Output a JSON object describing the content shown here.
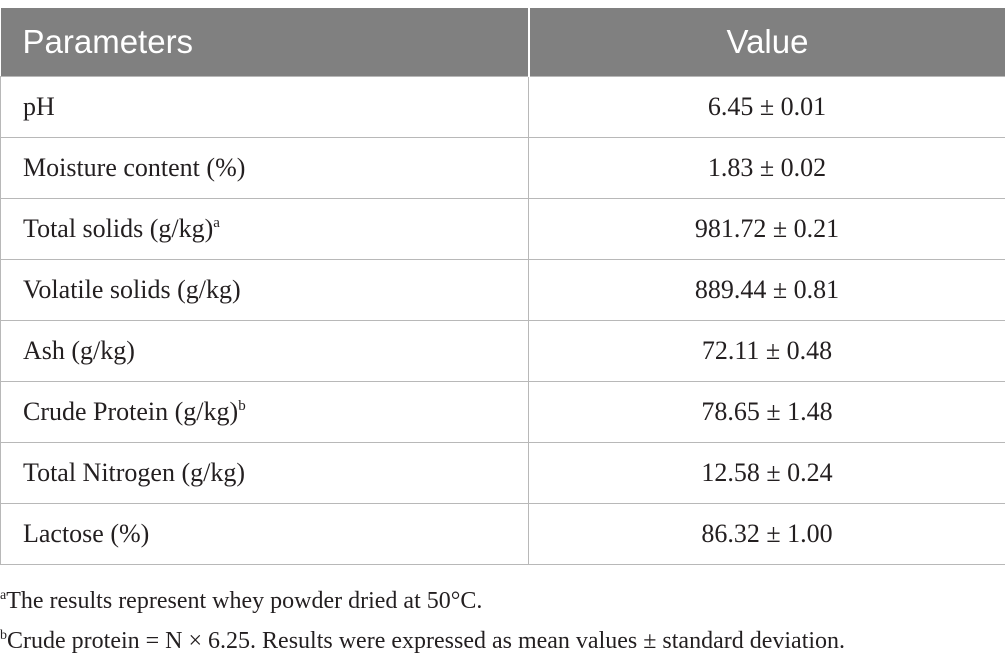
{
  "table": {
    "headers": [
      "Parameters",
      "Value"
    ],
    "rows": [
      {
        "parameter": "pH",
        "sup": "",
        "value": "6.45 ± 0.01"
      },
      {
        "parameter": "Moisture content (%)",
        "sup": "",
        "value": "1.83 ± 0.02"
      },
      {
        "parameter": "Total solids (g/kg)",
        "sup": "a",
        "value": "981.72 ± 0.21"
      },
      {
        "parameter": "Volatile solids (g/kg)",
        "sup": "",
        "value": "889.44 ± 0.81"
      },
      {
        "parameter": "Ash (g/kg)",
        "sup": "",
        "value": "72.11 ± 0.48"
      },
      {
        "parameter": "Crude Protein (g/kg)",
        "sup": "b",
        "value": "78.65 ± 1.48"
      },
      {
        "parameter": "Total Nitrogen (g/kg)",
        "sup": "",
        "value": "12.58 ± 0.24"
      },
      {
        "parameter": "Lactose (%)",
        "sup": "",
        "value": "86.32 ± 1.00"
      }
    ]
  },
  "footnotes": [
    {
      "mark": "a",
      "text": "The results represent whey powder dried at 50°C."
    },
    {
      "mark": "b",
      "text": "Crude protein = N × 6.25. Results were expressed as mean values ± standard deviation."
    }
  ],
  "colors": {
    "header_bg": "#808080",
    "header_text": "#ffffff",
    "border": "#b8b8b8",
    "text": "#231f20"
  }
}
